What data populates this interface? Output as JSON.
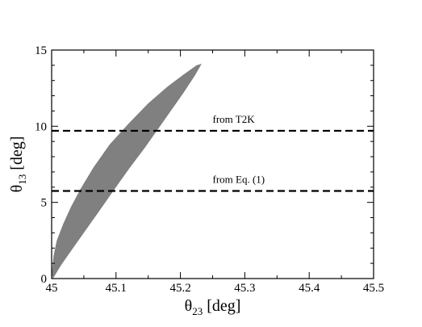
{
  "chart_data": {
    "type": "area",
    "xlabel": {
      "symbol": "θ",
      "sub": "23",
      "unit": " [deg]"
    },
    "ylabel": {
      "symbol": "θ",
      "sub": "13",
      "unit": " [deg]"
    },
    "xlim": [
      45,
      45.5
    ],
    "ylim": [
      0,
      15
    ],
    "xticks": [
      45,
      45.1,
      45.2,
      45.3,
      45.4,
      45.5
    ],
    "xtick_labels": [
      "45",
      "45.1",
      "45.2",
      "45.3",
      "45.4",
      "45.5"
    ],
    "yticks": [
      0,
      5,
      10,
      15
    ],
    "ytick_labels": [
      "0",
      "5",
      "10",
      "15"
    ],
    "grid": false,
    "region": {
      "fill": "#808080",
      "boundary": [
        [
          45.0,
          0.3
        ],
        [
          45.003,
          1.5
        ],
        [
          45.008,
          2.5
        ],
        [
          45.018,
          3.6
        ],
        [
          45.03,
          4.7
        ],
        [
          45.045,
          5.9
        ],
        [
          45.065,
          7.3
        ],
        [
          45.09,
          8.8
        ],
        [
          45.12,
          10.2
        ],
        [
          45.15,
          11.5
        ],
        [
          45.18,
          12.6
        ],
        [
          45.205,
          13.4
        ],
        [
          45.225,
          14.0
        ],
        [
          45.233,
          14.1
        ],
        [
          45.222,
          13.3
        ],
        [
          45.205,
          12.2
        ],
        [
          45.185,
          11.0
        ],
        [
          45.165,
          9.8
        ],
        [
          45.145,
          8.6
        ],
        [
          45.12,
          7.2
        ],
        [
          45.1,
          6.0
        ],
        [
          45.075,
          4.5
        ],
        [
          45.05,
          3.0
        ],
        [
          45.03,
          1.8
        ],
        [
          45.015,
          0.9
        ],
        [
          45.002,
          0.0
        ]
      ]
    },
    "hlines": [
      {
        "y": 9.7,
        "label": "from T2K",
        "label_x": 45.25,
        "style": "dashed",
        "color": "#000000"
      },
      {
        "y": 5.75,
        "label": "from Eq. (1)",
        "label_x": 45.25,
        "style": "dashed",
        "color": "#000000"
      }
    ]
  }
}
